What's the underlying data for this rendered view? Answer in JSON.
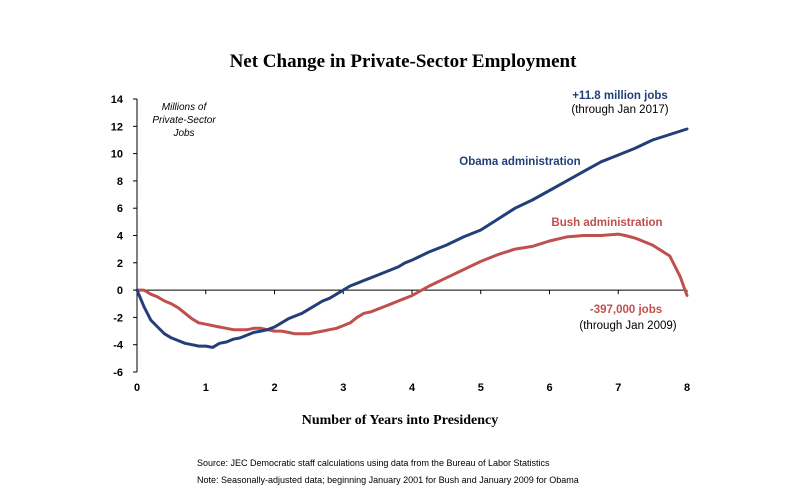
{
  "chart_data": {
    "type": "line",
    "title": "Net Change in Private-Sector Employment",
    "xlabel": "Number of Years into Presidency",
    "ylabel": "Millions of Private-Sector Jobs",
    "ylabel_lines": [
      "Millions of",
      "Private-Sector",
      "Jobs"
    ],
    "xlim": [
      0,
      8
    ],
    "ylim": [
      -6,
      14
    ],
    "x_ticks": [
      "0",
      "1",
      "2",
      "3",
      "4",
      "5",
      "6",
      "7",
      "8"
    ],
    "y_ticks": [
      "14",
      "12",
      "10",
      "8",
      "6",
      "4",
      "2",
      "0",
      "-2",
      "-4",
      "-6"
    ],
    "series": [
      {
        "name": "Obama administration",
        "color": "#233f7a",
        "x": [
          0,
          0.1,
          0.2,
          0.3,
          0.4,
          0.5,
          0.6,
          0.7,
          0.8,
          0.9,
          1.0,
          1.1,
          1.2,
          1.3,
          1.4,
          1.5,
          1.6,
          1.7,
          1.8,
          1.9,
          2.0,
          2.1,
          2.2,
          2.3,
          2.4,
          2.5,
          2.6,
          2.7,
          2.8,
          2.9,
          3.0,
          3.1,
          3.2,
          3.3,
          3.4,
          3.5,
          3.6,
          3.7,
          3.8,
          3.9,
          4.0,
          4.25,
          4.5,
          4.75,
          5.0,
          5.25,
          5.5,
          5.75,
          6.0,
          6.25,
          6.5,
          6.75,
          7.0,
          7.25,
          7.5,
          7.75,
          8.0
        ],
        "values": [
          0,
          -1.2,
          -2.2,
          -2.7,
          -3.2,
          -3.5,
          -3.7,
          -3.9,
          -4.0,
          -4.1,
          -4.1,
          -4.2,
          -3.9,
          -3.8,
          -3.6,
          -3.5,
          -3.3,
          -3.1,
          -3.0,
          -2.9,
          -2.7,
          -2.4,
          -2.1,
          -1.9,
          -1.7,
          -1.4,
          -1.1,
          -0.8,
          -0.6,
          -0.3,
          0.0,
          0.3,
          0.5,
          0.7,
          0.9,
          1.1,
          1.3,
          1.5,
          1.7,
          2.0,
          2.2,
          2.8,
          3.3,
          3.9,
          4.4,
          5.2,
          6.0,
          6.6,
          7.3,
          8.0,
          8.7,
          9.4,
          9.9,
          10.4,
          11.0,
          11.4,
          11.8
        ]
      },
      {
        "name": "Bush administration",
        "color": "#c0504d",
        "x": [
          0,
          0.1,
          0.2,
          0.3,
          0.4,
          0.5,
          0.6,
          0.7,
          0.8,
          0.9,
          1.0,
          1.1,
          1.2,
          1.3,
          1.4,
          1.5,
          1.6,
          1.7,
          1.8,
          1.9,
          2.0,
          2.1,
          2.2,
          2.3,
          2.4,
          2.5,
          2.6,
          2.7,
          2.8,
          2.9,
          3.0,
          3.1,
          3.2,
          3.3,
          3.4,
          3.5,
          3.6,
          3.7,
          3.8,
          3.9,
          4.0,
          4.25,
          4.5,
          4.75,
          5.0,
          5.25,
          5.5,
          5.75,
          6.0,
          6.25,
          6.5,
          6.75,
          7.0,
          7.1,
          7.25,
          7.5,
          7.75,
          7.9,
          8.0
        ],
        "values": [
          0,
          0.0,
          -0.3,
          -0.5,
          -0.8,
          -1.0,
          -1.3,
          -1.7,
          -2.1,
          -2.4,
          -2.5,
          -2.6,
          -2.7,
          -2.8,
          -2.9,
          -2.9,
          -2.9,
          -2.8,
          -2.8,
          -2.9,
          -3.0,
          -3.0,
          -3.1,
          -3.2,
          -3.2,
          -3.2,
          -3.1,
          -3.0,
          -2.9,
          -2.8,
          -2.6,
          -2.4,
          -2.0,
          -1.7,
          -1.6,
          -1.4,
          -1.2,
          -1.0,
          -0.8,
          -0.6,
          -0.4,
          0.3,
          0.9,
          1.5,
          2.1,
          2.6,
          3.0,
          3.2,
          3.6,
          3.9,
          4.0,
          4.0,
          4.1,
          4.0,
          3.8,
          3.3,
          2.5,
          1.0,
          -0.397
        ]
      }
    ],
    "annotations": {
      "obama_label": "Obama administration",
      "bush_label": "Bush administration",
      "obama_total": "+11.8 million jobs",
      "obama_through": "(through Jan 2017)",
      "bush_total": "-397,000 jobs",
      "bush_through": "(through Jan 2009)"
    }
  },
  "notes": {
    "source": "Source: JEC Democratic staff calculations using data from the Bureau of Labor Statistics",
    "note": "Note: Seasonally-adjusted data; beginning January 2001 for Bush and January 2009 for Obama"
  }
}
